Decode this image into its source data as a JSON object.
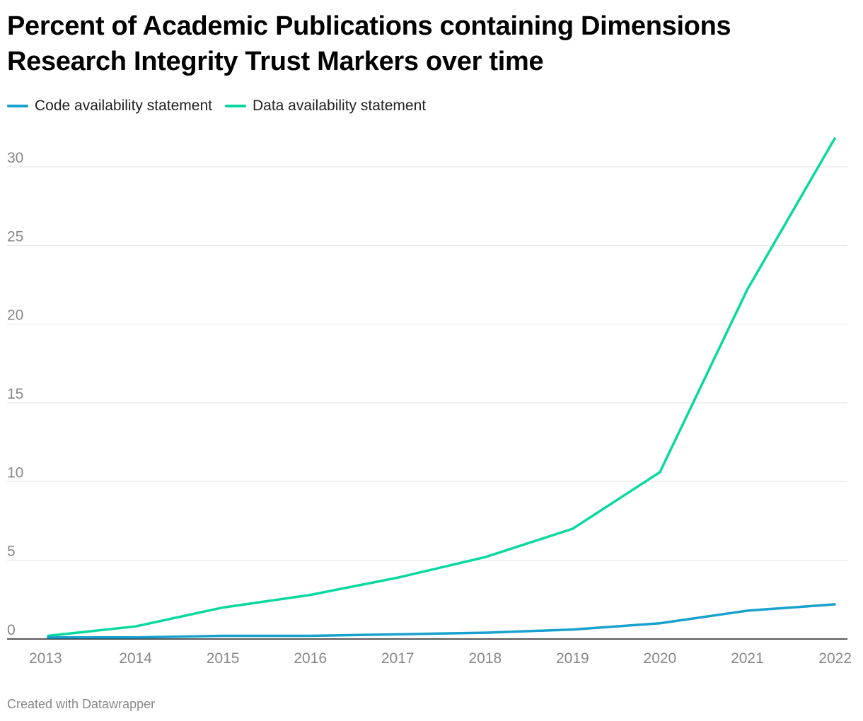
{
  "chart_data": {
    "type": "line",
    "title": "Percent of Academic Publications containing Dimensions Research Integrity Trust Markers over time",
    "xlabel": "",
    "ylabel": "",
    "x": [
      2013,
      2014,
      2015,
      2016,
      2017,
      2018,
      2019,
      2020,
      2021,
      2022
    ],
    "ylim": [
      0,
      30
    ],
    "yticks": [
      0,
      5,
      10,
      15,
      20,
      25,
      30
    ],
    "grid": true,
    "legend": "top-left",
    "series": [
      {
        "name": "Code availability statement",
        "color": "#18a1cd",
        "values": [
          0.1,
          0.1,
          0.2,
          0.2,
          0.3,
          0.4,
          0.6,
          1.0,
          1.8,
          2.2
        ]
      },
      {
        "name": "Data availability statement",
        "color": "#09d8a0",
        "values": [
          0.2,
          0.8,
          2.0,
          2.8,
          3.9,
          5.2,
          7.0,
          10.6,
          22.2,
          31.8
        ]
      }
    ]
  },
  "footer": "Created with Datawrapper"
}
